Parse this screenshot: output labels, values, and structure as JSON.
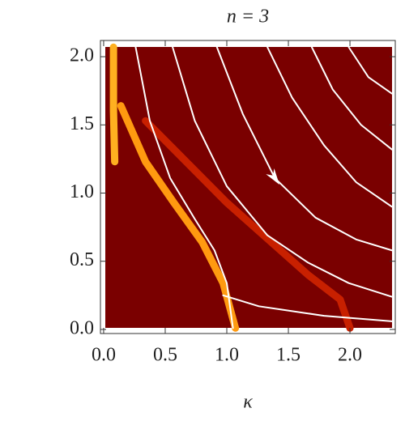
{
  "chart_data": {
    "type": "density",
    "title": "n = 3",
    "x_label": "κ",
    "xlim": [
      -0.026,
      2.368
    ],
    "ylim": [
      -0.03,
      2.119
    ],
    "xticks": [
      {
        "value": 0,
        "label": "0.0"
      },
      0.5,
      {
        "value": 1,
        "label": "1.0"
      },
      1.5,
      {
        "value": 2,
        "label": "2.0"
      }
    ],
    "yticks": [
      {
        "value": 0,
        "label": "0.0"
      },
      0.5,
      {
        "value": 1,
        "label": "1.0"
      },
      1.5,
      {
        "value": 2,
        "label": "2.0"
      }
    ],
    "background": "#7a0000",
    "bands": [
      {
        "color": "#ffb020",
        "x": [
          0.08,
          0.08,
          0.09
        ],
        "y": [
          2.07,
          1.6,
          1.23
        ]
      },
      {
        "color": "#ff9a10",
        "x": [
          0.14,
          0.34,
          0.57,
          0.8,
          0.97,
          1.07
        ],
        "y": [
          1.64,
          1.23,
          0.93,
          0.64,
          0.34,
          0.01
        ]
      },
      {
        "color": "#c82000",
        "x": [
          0.34,
          1.0,
          1.66,
          1.92,
          2.0
        ],
        "y": [
          1.53,
          0.93,
          0.4,
          0.22,
          0.01
        ]
      }
    ],
    "curves": [
      {
        "color": "#ffffff",
        "x": [
          0.26,
          0.375,
          0.54,
          0.74,
          0.9,
          1.0,
          1.05
        ],
        "y": [
          2.07,
          1.53,
          1.11,
          0.81,
          0.58,
          0.34,
          0.01
        ]
      },
      {
        "color": "#ffffff",
        "x": [
          0.97,
          1.26,
          1.79,
          2.34
        ],
        "y": [
          0.25,
          0.17,
          0.1,
          0.06
        ]
      },
      {
        "color": "#ffffff",
        "x": [
          0.56,
          0.74,
          1.0,
          1.33,
          1.66,
          1.99,
          2.34
        ],
        "y": [
          2.07,
          1.53,
          1.05,
          0.69,
          0.49,
          0.34,
          0.24
        ]
      },
      {
        "color": "#ffffff",
        "x": [
          0.92,
          1.13,
          1.39,
          1.72,
          2.05,
          2.34
        ],
        "y": [
          2.07,
          1.58,
          1.11,
          0.82,
          0.66,
          0.58
        ]
      },
      {
        "color": "#ffffff",
        "x": [
          1.33,
          1.53,
          1.79,
          2.05,
          2.34
        ],
        "y": [
          2.07,
          1.7,
          1.35,
          1.08,
          0.9
        ]
      },
      {
        "color": "#ffffff",
        "x": [
          1.69,
          1.86,
          2.09,
          2.34
        ],
        "y": [
          2.07,
          1.76,
          1.5,
          1.32
        ]
      },
      {
        "color": "#ffffff",
        "x": [
          1.99,
          2.15,
          2.34
        ],
        "y": [
          2.07,
          1.85,
          1.73
        ]
      }
    ]
  }
}
